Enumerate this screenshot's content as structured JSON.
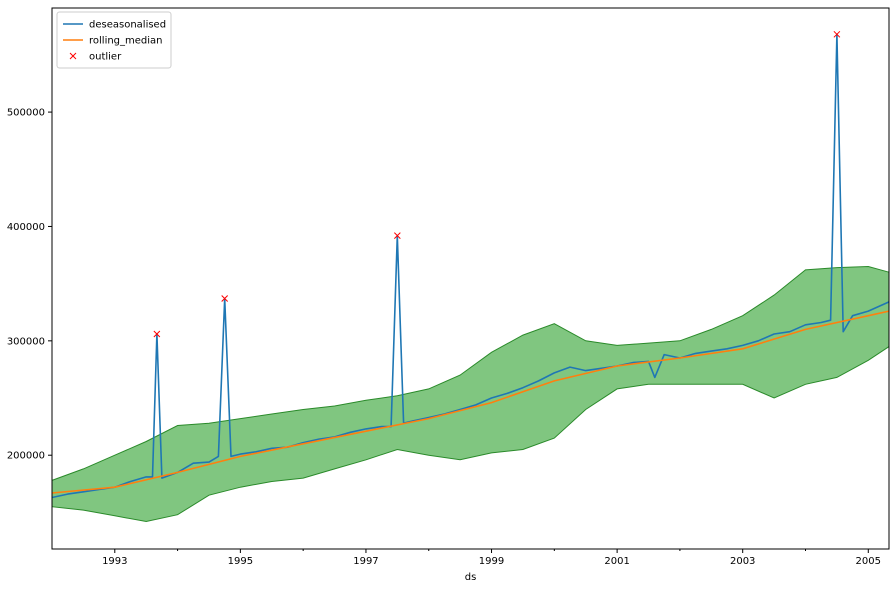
{
  "chart_data": {
    "type": "line",
    "title": "",
    "xlabel": "ds",
    "ylabel": "",
    "x_range": [
      1992.0,
      2005.33
    ],
    "ylim": [
      118000,
      591000
    ],
    "x_ticks": [
      {
        "value": 1993,
        "label": "1993"
      },
      {
        "value": 1995,
        "label": "1995"
      },
      {
        "value": 1997,
        "label": "1997"
      },
      {
        "value": 1999,
        "label": "1999"
      },
      {
        "value": 2001,
        "label": "2001"
      },
      {
        "value": 2003,
        "label": "2003"
      },
      {
        "value": 2005,
        "label": "2005"
      }
    ],
    "x_minor_ticks": [
      1994,
      1996,
      1998,
      2000,
      2002,
      2004
    ],
    "y_ticks": [
      {
        "value": 200000,
        "label": "200000"
      },
      {
        "value": 300000,
        "label": "300000"
      },
      {
        "value": 400000,
        "label": "400000"
      },
      {
        "value": 500000,
        "label": "500000"
      }
    ],
    "grid": false,
    "legend_position": "top-left",
    "colors": {
      "deseasonalised": "#1f77b4",
      "rolling_median": "#ff7f0e",
      "outlier": "#ff0000",
      "band_fill": "#2ca02c",
      "band_edge": "#2a8a2a"
    },
    "legend": [
      {
        "label": "deseasonalised",
        "kind": "line",
        "color": "#1f77b4"
      },
      {
        "label": "rolling_median",
        "kind": "line",
        "color": "#ff7f0e"
      },
      {
        "label": "outlier",
        "kind": "x-marker",
        "color": "#ff0000"
      }
    ],
    "series": [
      {
        "name": "deseasonalised",
        "kind": "line",
        "x": [
          1992.0,
          1992.25,
          1992.5,
          1992.75,
          1993.0,
          1993.25,
          1993.5,
          1993.6,
          1993.67,
          1993.75,
          1994.0,
          1994.25,
          1994.5,
          1994.65,
          1994.75,
          1994.85,
          1995.0,
          1995.25,
          1995.5,
          1995.75,
          1996.0,
          1996.25,
          1996.5,
          1996.75,
          1997.0,
          1997.25,
          1997.4,
          1997.5,
          1997.6,
          1997.75,
          1998.0,
          1998.25,
          1998.5,
          1998.75,
          1999.0,
          1999.25,
          1999.5,
          1999.75,
          2000.0,
          2000.25,
          2000.5,
          2000.75,
          2001.0,
          2001.25,
          2001.5,
          2001.6,
          2001.75,
          2002.0,
          2002.25,
          2002.5,
          2002.75,
          2003.0,
          2003.25,
          2003.5,
          2003.75,
          2004.0,
          2004.25,
          2004.4,
          2004.5,
          2004.6,
          2004.75,
          2005.0,
          2005.33
        ],
        "values": [
          163000,
          166000,
          168000,
          170000,
          172000,
          177000,
          181000,
          181000,
          306000,
          180000,
          185000,
          193000,
          194000,
          199000,
          337000,
          199000,
          201000,
          203000,
          206000,
          207000,
          211000,
          214000,
          216000,
          220000,
          223000,
          225000,
          225000,
          392000,
          228000,
          230000,
          233000,
          236000,
          240000,
          244000,
          250000,
          254000,
          259000,
          265000,
          272000,
          277000,
          274000,
          276000,
          278000,
          281000,
          282000,
          268000,
          288000,
          285000,
          289000,
          291000,
          293000,
          296000,
          300000,
          306000,
          308000,
          314000,
          316000,
          318000,
          568000,
          308000,
          322000,
          326000,
          334000
        ]
      },
      {
        "name": "rolling_median",
        "kind": "line",
        "x": [
          1992.0,
          1993.0,
          1994.0,
          1995.0,
          1996.0,
          1997.0,
          1998.0,
          1999.0,
          2000.0,
          2001.0,
          2002.0,
          2003.0,
          2004.0,
          2005.0,
          2005.33
        ],
        "values": [
          167000,
          172000,
          185000,
          199000,
          210000,
          221000,
          232000,
          246000,
          265000,
          278000,
          285000,
          293000,
          310000,
          322000,
          326000
        ]
      },
      {
        "name": "outlier",
        "kind": "marker",
        "x": [
          1993.67,
          1994.75,
          1997.5,
          2004.5
        ],
        "values": [
          306000,
          337000,
          392000,
          568000
        ]
      }
    ],
    "band": {
      "x": [
        1992.0,
        1992.5,
        1993.0,
        1993.5,
        1994.0,
        1994.5,
        1995.0,
        1995.5,
        1996.0,
        1996.5,
        1997.0,
        1997.5,
        1998.0,
        1998.5,
        1999.0,
        1999.5,
        2000.0,
        2000.5,
        2001.0,
        2001.5,
        2002.0,
        2002.5,
        2003.0,
        2003.5,
        2004.0,
        2004.5,
        2005.0,
        2005.33
      ],
      "upper": [
        178000,
        188000,
        200000,
        212000,
        226000,
        228000,
        232000,
        236000,
        240000,
        243000,
        248000,
        252000,
        258000,
        270000,
        290000,
        305000,
        315000,
        300000,
        296000,
        298000,
        300000,
        310000,
        322000,
        340000,
        362000,
        364000,
        365000,
        360000
      ],
      "lower": [
        155000,
        152000,
        147000,
        142000,
        148000,
        165000,
        172000,
        177000,
        180000,
        188000,
        196000,
        205000,
        200000,
        196000,
        202000,
        205000,
        215000,
        240000,
        258000,
        262000,
        262000,
        262000,
        262000,
        250000,
        262000,
        268000,
        283000,
        295000
      ]
    }
  }
}
